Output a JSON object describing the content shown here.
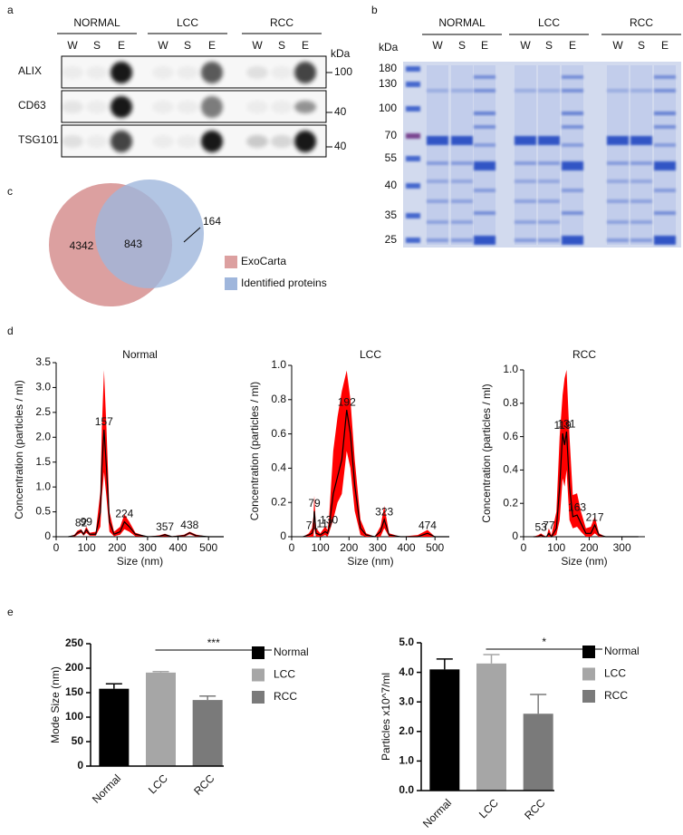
{
  "panel_labels": [
    "a",
    "b",
    "c",
    "d",
    "e"
  ],
  "blot": {
    "groups": [
      "NORMAL",
      "LCC",
      "RCC"
    ],
    "lanes": [
      "W",
      "S",
      "E"
    ],
    "unit": "kDa",
    "rows": [
      {
        "name": "ALIX",
        "marker": "100"
      },
      {
        "name": "CD63",
        "marker": "40"
      },
      {
        "name": "TSG101",
        "marker": "40"
      }
    ]
  },
  "gel": {
    "groups": [
      "NORMAL",
      "LCC",
      "RCC"
    ],
    "lanes": [
      "W",
      "S",
      "E"
    ],
    "unit": "kDa",
    "markers": [
      "180",
      "130",
      "100",
      "70",
      "55",
      "40",
      "35",
      "25"
    ]
  },
  "chart_data": [
    {
      "type": "venn",
      "sets": [
        {
          "name": "ExoCarta",
          "color": "#dca0a0",
          "only": 4342
        },
        {
          "name": "Identified proteins",
          "color": "#9fb6dc",
          "only": 164
        }
      ],
      "overlap": 843
    },
    {
      "type": "line",
      "title": "Normal",
      "xlabel": "Size (nm)",
      "ylabel": "Concentration (particles / ml)",
      "color": "#000000",
      "x": [
        40,
        60,
        70,
        82,
        90,
        99,
        110,
        130,
        145,
        150,
        157,
        165,
        175,
        190,
        210,
        224,
        240,
        260,
        300,
        340,
        357,
        380,
        420,
        438,
        460,
        500,
        550
      ],
      "values": [
        0,
        0.02,
        0.08,
        0.12,
        0.05,
        0.14,
        0.05,
        0.05,
        0.5,
        1.4,
        2.15,
        1.4,
        0.3,
        0.05,
        0.1,
        0.3,
        0.2,
        0.05,
        0,
        0.01,
        0.04,
        0,
        0.02,
        0.08,
        0.02,
        0,
        0
      ],
      "band": {
        "color": "#ff0000",
        "upper": [
          0,
          0.04,
          0.12,
          0.15,
          0.08,
          0.2,
          0.08,
          0.1,
          0.9,
          2.2,
          3.35,
          2.2,
          0.5,
          0.1,
          0.2,
          0.45,
          0.3,
          0.08,
          0,
          0.03,
          0.06,
          0.01,
          0.04,
          0.1,
          0.04,
          0,
          0
        ],
        "lower": [
          0,
          0,
          0.04,
          0.08,
          0.02,
          0.08,
          0.02,
          0.02,
          0.2,
          0.8,
          1.3,
          0.8,
          0.1,
          0.01,
          0.04,
          0.15,
          0.1,
          0.01,
          0,
          0,
          0.01,
          0,
          0,
          0.05,
          0,
          0,
          0
        ]
      },
      "peak_labels": [
        82,
        99,
        157,
        224,
        357,
        438
      ],
      "peak_label_color": "#2233dd",
      "xlim": [
        0,
        550
      ],
      "xticks": [
        0,
        100,
        200,
        300,
        400,
        500
      ],
      "ylim": [
        0,
        3.5
      ],
      "yticks": [
        0,
        0.5,
        {
          "value": 1,
          "label": "1.0"
        },
        1.5,
        {
          "value": 2,
          "label": "2.0"
        },
        2.5,
        {
          "value": 3,
          "label": "3.0"
        },
        3.5
      ]
    },
    {
      "type": "line",
      "title": "LCC",
      "xlabel": "Size (nm)",
      "ylabel": "Concentration (particles / ml)",
      "color": "#000000",
      "x": [
        40,
        60,
        71,
        76,
        79,
        85,
        100,
        117,
        125,
        130,
        145,
        160,
        175,
        192,
        205,
        220,
        240,
        260,
        290,
        310,
        323,
        340,
        380,
        440,
        474,
        500,
        550
      ],
      "values": [
        0,
        0.01,
        0.02,
        0.05,
        0.15,
        0.02,
        0.01,
        0.03,
        0.02,
        0.05,
        0.25,
        0.35,
        0.45,
        0.74,
        0.6,
        0.3,
        0.05,
        0.01,
        0,
        0.03,
        0.1,
        0.01,
        0,
        0,
        0.02,
        0,
        0
      ],
      "band": {
        "color": "#ff0000",
        "upper": [
          0,
          0.02,
          0.05,
          0.12,
          0.24,
          0.05,
          0.02,
          0.06,
          0.04,
          0.1,
          0.5,
          0.7,
          0.85,
          0.97,
          0.8,
          0.45,
          0.1,
          0.02,
          0,
          0.06,
          0.18,
          0.02,
          0,
          0.01,
          0.04,
          0,
          0
        ],
        "lower": [
          0,
          0,
          0,
          0,
          0.05,
          0,
          0,
          0.01,
          0,
          0.02,
          0.1,
          0.2,
          0.25,
          0.5,
          0.4,
          0.15,
          0.01,
          0,
          0,
          0,
          0.05,
          0,
          0,
          0,
          0,
          0,
          0
        ]
      },
      "peak_labels": [
        71,
        79,
        117,
        130,
        192,
        323,
        474
      ],
      "peak_label_color": "#2233dd",
      "xlim": [
        0,
        550
      ],
      "xticks": [
        0,
        100,
        200,
        300,
        400,
        500
      ],
      "ylim": [
        0,
        1
      ],
      "yticks": [
        0,
        0.2,
        0.4,
        0.6,
        0.8,
        {
          "value": 1,
          "label": "1.0"
        }
      ]
    },
    {
      "type": "line",
      "title": "RCC",
      "xlabel": "Size (nm)",
      "ylabel": "Concentration (particles / ml)",
      "color": "#000000",
      "x": [
        30,
        45,
        53,
        60,
        70,
        77,
        85,
        100,
        110,
        119,
        125,
        131,
        140,
        150,
        163,
        175,
        190,
        205,
        217,
        230,
        250,
        300,
        350
      ],
      "values": [
        0,
        0,
        0.01,
        0,
        0,
        0.02,
        0,
        0.05,
        0.3,
        0.62,
        0.55,
        0.63,
        0.3,
        0.12,
        0.13,
        0.08,
        0.02,
        0.02,
        0.07,
        0.01,
        0,
        0,
        0
      ],
      "band": {
        "color": "#ff0000",
        "upper": [
          0,
          0.01,
          0.02,
          0.01,
          0,
          0.05,
          0.01,
          0.15,
          0.6,
          0.85,
          0.95,
          1,
          0.6,
          0.25,
          0.26,
          0.15,
          0.05,
          0.06,
          0.12,
          0.02,
          0,
          0,
          0
        ],
        "lower": [
          0,
          0,
          0,
          0,
          0,
          0,
          0,
          0.01,
          0.1,
          0.35,
          0.3,
          0.4,
          0.1,
          0.05,
          0.06,
          0.03,
          0,
          0,
          0.02,
          0,
          0,
          0,
          0
        ]
      },
      "peak_labels": [
        53,
        77,
        119,
        131,
        163,
        217
      ],
      "peak_label_color": "#2233dd",
      "xlim": [
        0,
        370
      ],
      "xticks": [
        0,
        100,
        200,
        300
      ],
      "ylim": [
        0,
        1
      ],
      "yticks": [
        0,
        0.2,
        0.4,
        0.6,
        0.8,
        {
          "value": 1,
          "label": "1.0"
        }
      ]
    },
    {
      "type": "bar",
      "ylabel": "Mode Size (nm)",
      "categories": [
        "Normal",
        "LCC",
        "RCC"
      ],
      "values": [
        158,
        191,
        135
      ],
      "errors": [
        10,
        2,
        8
      ],
      "colors": [
        "#000000",
        "#a6a6a6",
        "#7a7a7a"
      ],
      "significance": "***",
      "ylim": [
        0,
        250
      ],
      "yticks": [
        0,
        50,
        100,
        150,
        200,
        250
      ]
    },
    {
      "type": "bar",
      "ylabel": "Particles x10^7/ml",
      "categories": [
        "Normal",
        "LCC",
        "RCC"
      ],
      "values": [
        4.1,
        4.3,
        2.6
      ],
      "errors": [
        0.35,
        0.3,
        0.65
      ],
      "colors": [
        "#000000",
        "#a6a6a6",
        "#7a7a7a"
      ],
      "significance": "*",
      "ylim": [
        0,
        5
      ],
      "yticks": [
        {
          "value": 0,
          "label": "0.0"
        },
        {
          "value": 1,
          "label": "1.0"
        },
        {
          "value": 2,
          "label": "2.0"
        },
        {
          "value": 3,
          "label": "3.0"
        },
        {
          "value": 4,
          "label": "4.0"
        },
        {
          "value": 5,
          "label": "5.0"
        }
      ]
    }
  ]
}
